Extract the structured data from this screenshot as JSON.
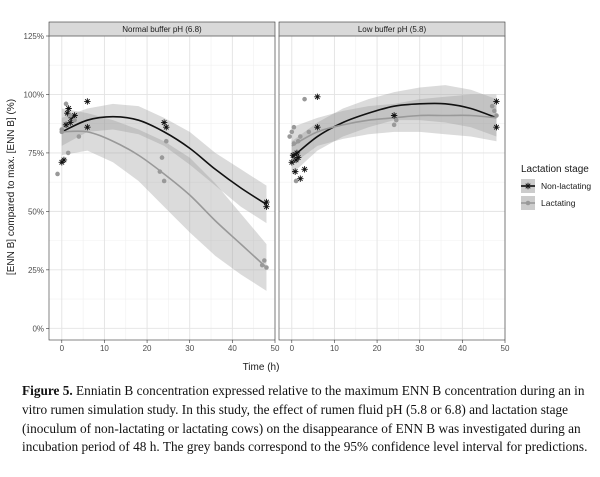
{
  "chart_data": {
    "type": "scatter",
    "ylabel": "[ENN B] compared to max. [ENN B] (%)",
    "xlabel": "Time (h)",
    "xlim": [
      -3,
      50
    ],
    "ylim": [
      -5,
      125
    ],
    "xticks": [
      0,
      10,
      20,
      30,
      40,
      50
    ],
    "yticks": [
      0,
      25,
      50,
      75,
      100,
      125
    ],
    "ytick_labels": [
      "0%",
      "25%",
      "50%",
      "75%",
      "100%",
      "125%"
    ],
    "grid": true,
    "legend_title": "Lactation stage",
    "legend_position": "right",
    "panels": [
      {
        "strip": "Normal buffer pH (6.8)",
        "series": [
          {
            "name": "Non-lactating",
            "color": "#111111",
            "marker": "asterisk",
            "points": [
              [
                0,
                71
              ],
              [
                0.5,
                72
              ],
              [
                1,
                87
              ],
              [
                1.3,
                92
              ],
              [
                1.6,
                94
              ],
              [
                2,
                88
              ],
              [
                2.3,
                90
              ],
              [
                3,
                91
              ],
              [
                6,
                97
              ],
              [
                6,
                86
              ],
              [
                24,
                88
              ],
              [
                24.5,
                86
              ],
              [
                48,
                54
              ],
              [
                48,
                52
              ]
            ],
            "fit": [
              [
                0,
                84
              ],
              [
                6,
                89
              ],
              [
                12,
                90.5
              ],
              [
                18,
                89
              ],
              [
                24,
                84
              ],
              [
                30,
                77
              ],
              [
                36,
                68
              ],
              [
                42,
                60
              ],
              [
                48,
                53
              ]
            ],
            "band_lower": [
              [
                0,
                78
              ],
              [
                6,
                84
              ],
              [
                12,
                85
              ],
              [
                18,
                83
              ],
              [
                24,
                78
              ],
              [
                30,
                70
              ],
              [
                36,
                61
              ],
              [
                42,
                52
              ],
              [
                48,
                45
              ]
            ],
            "band_upper": [
              [
                0,
                90
              ],
              [
                6,
                94
              ],
              [
                12,
                96
              ],
              [
                18,
                95
              ],
              [
                24,
                90
              ],
              [
                30,
                84
              ],
              [
                36,
                75
              ],
              [
                42,
                68
              ],
              [
                48,
                61
              ]
            ]
          },
          {
            "name": "Lactating",
            "color": "#999999",
            "marker": "circle",
            "points": [
              [
                -1,
                66
              ],
              [
                0,
                84
              ],
              [
                0,
                85
              ],
              [
                1,
                96
              ],
              [
                1.5,
                75
              ],
              [
                2,
                91
              ],
              [
                3,
                89
              ],
              [
                4,
                82
              ],
              [
                23,
                67
              ],
              [
                23.5,
                73
              ],
              [
                24,
                63
              ],
              [
                24.5,
                80
              ],
              [
                47,
                27
              ],
              [
                47.5,
                29
              ],
              [
                48,
                26
              ]
            ],
            "fit": [
              [
                0,
                84
              ],
              [
                6,
                84
              ],
              [
                12,
                80
              ],
              [
                18,
                74
              ],
              [
                24,
                66
              ],
              [
                30,
                57
              ],
              [
                36,
                46
              ],
              [
                42,
                36
              ],
              [
                48,
                26
              ]
            ],
            "band_lower": [
              [
                0,
                74
              ],
              [
                6,
                76
              ],
              [
                12,
                71
              ],
              [
                18,
                63
              ],
              [
                24,
                52
              ],
              [
                30,
                41
              ],
              [
                36,
                31
              ],
              [
                42,
                23
              ],
              [
                48,
                16
              ]
            ],
            "band_upper": [
              [
                0,
                94
              ],
              [
                6,
                92
              ],
              [
                12,
                89
              ],
              [
                18,
                85
              ],
              [
                24,
                80
              ],
              [
                30,
                73
              ],
              [
                36,
                62
              ],
              [
                42,
                49
              ],
              [
                48,
                36
              ]
            ]
          }
        ]
      },
      {
        "strip": "Low buffer pH (5.8)",
        "series": [
          {
            "name": "Non-lactating",
            "color": "#111111",
            "marker": "asterisk",
            "points": [
              [
                0,
                71
              ],
              [
                0.3,
                74
              ],
              [
                0.8,
                67
              ],
              [
                1,
                72
              ],
              [
                1.2,
                75
              ],
              [
                1.5,
                73
              ],
              [
                2,
                64
              ],
              [
                3,
                68
              ],
              [
                6,
                99
              ],
              [
                6,
                86
              ],
              [
                24,
                91
              ],
              [
                48,
                86
              ],
              [
                48,
                97
              ]
            ],
            "fit": [
              [
                0,
                73
              ],
              [
                6,
                82
              ],
              [
                12,
                88
              ],
              [
                18,
                92
              ],
              [
                24,
                95
              ],
              [
                30,
                96
              ],
              [
                36,
                96
              ],
              [
                42,
                94
              ],
              [
                48,
                90
              ]
            ],
            "band_lower": [
              [
                0,
                66
              ],
              [
                6,
                76
              ],
              [
                12,
                82
              ],
              [
                18,
                86
              ],
              [
                24,
                89
              ],
              [
                30,
                89
              ],
              [
                36,
                88
              ],
              [
                42,
                86
              ],
              [
                48,
                82
              ]
            ],
            "band_upper": [
              [
                0,
                80
              ],
              [
                6,
                88
              ],
              [
                12,
                94
              ],
              [
                18,
                98
              ],
              [
                24,
                101
              ],
              [
                30,
                103
              ],
              [
                36,
                104
              ],
              [
                42,
                102
              ],
              [
                48,
                98
              ]
            ]
          },
          {
            "name": "Lactating",
            "color": "#999999",
            "marker": "circle",
            "points": [
              [
                -0.5,
                82
              ],
              [
                0,
                84
              ],
              [
                0.5,
                86
              ],
              [
                0.5,
                79
              ],
              [
                1,
                63
              ],
              [
                1.5,
                80
              ],
              [
                2,
                82
              ],
              [
                3,
                98
              ],
              [
                4,
                84
              ],
              [
                24,
                87
              ],
              [
                24.5,
                89
              ],
              [
                47,
                95
              ],
              [
                47.5,
                93
              ],
              [
                48,
                91
              ]
            ],
            "fit": [
              [
                0,
                78
              ],
              [
                6,
                84
              ],
              [
                12,
                87
              ],
              [
                18,
                89
              ],
              [
                24,
                90
              ],
              [
                30,
                91
              ],
              [
                36,
                91
              ],
              [
                42,
                91
              ],
              [
                48,
                90
              ]
            ],
            "band_lower": [
              [
                0,
                70
              ],
              [
                6,
                78
              ],
              [
                12,
                81
              ],
              [
                18,
                83
              ],
              [
                24,
                84
              ],
              [
                30,
                84
              ],
              [
                36,
                83
              ],
              [
                42,
                82
              ],
              [
                48,
                80
              ]
            ],
            "band_upper": [
              [
                0,
                86
              ],
              [
                6,
                90
              ],
              [
                12,
                93
              ],
              [
                18,
                95
              ],
              [
                24,
                96
              ],
              [
                30,
                98
              ],
              [
                36,
                99
              ],
              [
                42,
                100
              ],
              [
                48,
                100
              ]
            ]
          }
        ]
      }
    ]
  },
  "caption": {
    "label": "Figure 5.",
    "text": " Enniatin B concentration expressed relative to the maximum ENN B concentration during an in vitro rumen simulation study. In this study, the effect of rumen fluid pH (5.8 or 6.8) and lactation stage (inoculum of non-lactating or lactating cows) on the disappearance of ENN B was investigated during an incubation period of 48 h. The grey bands correspond to the 95% confidence level interval for predictions."
  }
}
